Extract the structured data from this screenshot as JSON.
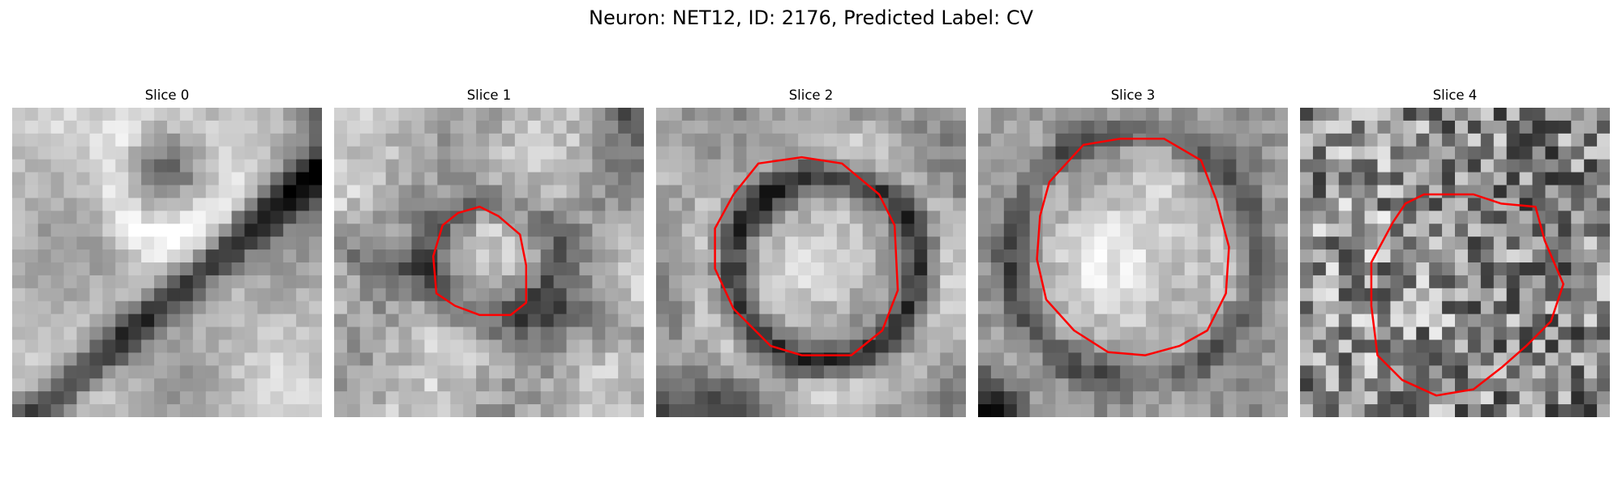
{
  "figure": {
    "suptitle": "Neuron: NET12, ID: 2176, Predicted Label: CV",
    "contour_color": "#ff0000",
    "colormap": "gray"
  },
  "panels": [
    {
      "title": "Slice 0",
      "has_contour": false
    },
    {
      "title": "Slice 1",
      "has_contour": true
    },
    {
      "title": "Slice 2",
      "has_contour": true
    },
    {
      "title": "Slice 3",
      "has_contour": true
    },
    {
      "title": "Slice 4",
      "has_contour": true
    }
  ]
}
